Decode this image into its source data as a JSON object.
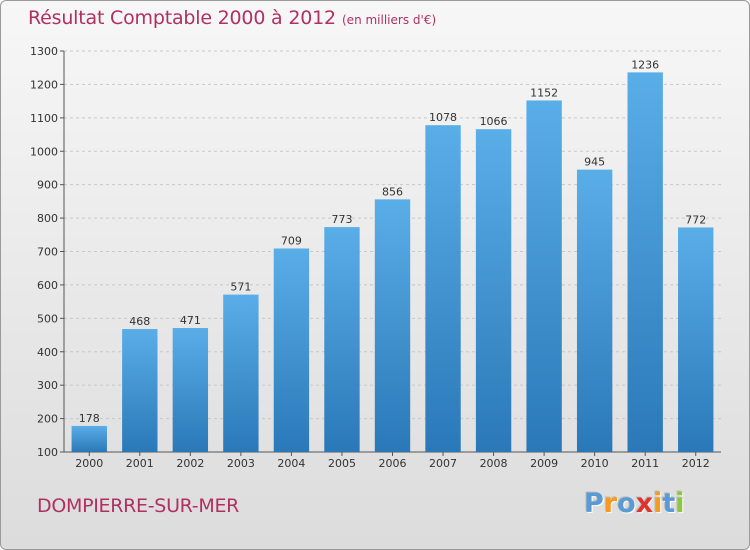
{
  "title": "Résultat Comptable 2000 à 2012",
  "subtitle": "(en milliers d'€)",
  "town": "DOMPIERRE-SUR-MER",
  "logo": {
    "text": "Proxiti",
    "letters": [
      "P",
      "r",
      "o",
      "x",
      "i",
      "t",
      "i"
    ],
    "colors": [
      "#5b9bd5",
      "#f59a23",
      "#5b9bd5",
      "#e0322c",
      "#f59a23",
      "#5b9bd5",
      "#8dc63f"
    ]
  },
  "colors": {
    "title": "#b03060",
    "bar_top": "#5aaee8",
    "bar_bottom": "#2a78b8",
    "grid": "#c8c8c8"
  },
  "chart_data": {
    "type": "bar",
    "categories": [
      "2000",
      "2001",
      "2002",
      "2003",
      "2004",
      "2005",
      "2006",
      "2007",
      "2008",
      "2009",
      "2010",
      "2011",
      "2012"
    ],
    "values": [
      178,
      468,
      471,
      571,
      709,
      773,
      856,
      1078,
      1066,
      1152,
      945,
      1236,
      772
    ],
    "ylim": [
      100,
      1300
    ],
    "yticks": [
      "100",
      "200",
      "300",
      "400",
      "500",
      "600",
      "700",
      "800",
      "900",
      "1000",
      "1100",
      "1200",
      "1300"
    ],
    "grid": true
  }
}
